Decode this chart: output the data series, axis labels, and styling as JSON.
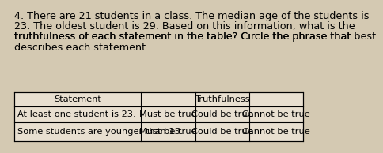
{
  "title_lines": [
    "4. There are 21 students in a class. The median age of the students is",
    "23. The oldest student is 29. Based on this information, what is the",
    "truthfulness of each statement in the table? Circle the phrase that best",
    "describes each statement."
  ],
  "col_headers": [
    "Statement",
    "Truthfulness"
  ],
  "truthfulness_sub_cols": [
    "Must be true",
    "Could be true",
    "Cannot be true"
  ],
  "row1_stmt": "At least one student is 23.",
  "row2_stmt": "Some students are younger than 15.",
  "bg_color": "#d4c9b2",
  "table_bg": "#e8dfd0",
  "font_size_title": 9.2,
  "font_size_table": 8.2
}
